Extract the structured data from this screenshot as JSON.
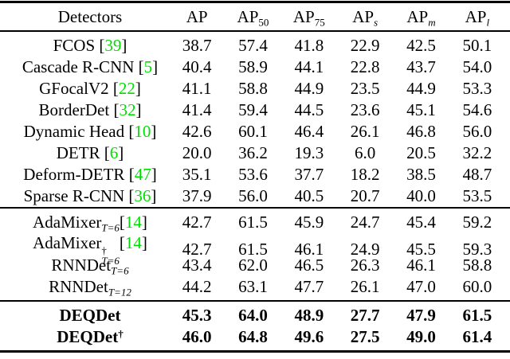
{
  "colors": {
    "citation": "#00dd00",
    "text": "#000000",
    "background": "#ffffff"
  },
  "table": {
    "header": [
      {
        "key": "detectors",
        "label": "Detectors",
        "sub": ""
      },
      {
        "key": "ap",
        "label": "AP",
        "sub": ""
      },
      {
        "key": "ap50",
        "label": "AP",
        "sub": "50"
      },
      {
        "key": "ap75",
        "label": "AP",
        "sub": "75"
      },
      {
        "key": "aps",
        "label": "AP",
        "sub": "s"
      },
      {
        "key": "apm",
        "label": "AP",
        "sub": "m"
      },
      {
        "key": "apl",
        "label": "AP",
        "sub": "l"
      }
    ],
    "sections": [
      {
        "bold": false,
        "rows": [
          {
            "name": "FCOS",
            "cite": "39",
            "values": [
              "38.7",
              "57.4",
              "41.8",
              "22.9",
              "42.5",
              "50.1"
            ]
          },
          {
            "name": "Cascade R-CNN",
            "cite": "5",
            "values": [
              "40.4",
              "58.9",
              "44.1",
              "22.8",
              "43.7",
              "54.0"
            ]
          },
          {
            "name": "GFocalV2",
            "cite": "22",
            "values": [
              "41.1",
              "58.8",
              "44.9",
              "23.5",
              "44.9",
              "53.3"
            ]
          },
          {
            "name": "BorderDet",
            "cite": "32",
            "values": [
              "41.4",
              "59.4",
              "44.5",
              "23.6",
              "45.1",
              "54.6"
            ]
          },
          {
            "name": "Dynamic Head",
            "cite": "10",
            "values": [
              "42.6",
              "60.1",
              "46.4",
              "26.1",
              "46.8",
              "56.0"
            ]
          },
          {
            "name": "DETR",
            "cite": "6",
            "values": [
              "20.0",
              "36.2",
              "19.3",
              "6.0",
              "20.5",
              "32.2"
            ]
          },
          {
            "name": "Deform-DETR",
            "cite": "47",
            "values": [
              "35.1",
              "53.6",
              "37.7",
              "18.2",
              "38.5",
              "48.7"
            ]
          },
          {
            "name": "Sparse R-CNN",
            "cite": "36",
            "values": [
              "37.9",
              "56.0",
              "40.5",
              "20.7",
              "40.0",
              "53.5"
            ]
          }
        ]
      },
      {
        "bold": false,
        "rows": [
          {
            "name": "AdaMixer",
            "sub": "T=6",
            "cite": "14",
            "values": [
              "42.7",
              "61.5",
              "45.9",
              "24.7",
              "45.4",
              "59.2"
            ]
          },
          {
            "name": "AdaMixer",
            "sub": "T=6",
            "dagger": true,
            "cite": "14",
            "values": [
              "42.7",
              "61.5",
              "46.1",
              "24.9",
              "45.5",
              "59.3"
            ]
          },
          {
            "name": "RNNDet",
            "sub": "T=6",
            "values": [
              "43.4",
              "62.0",
              "46.5",
              "26.3",
              "46.1",
              "58.8"
            ]
          },
          {
            "name": "RNNDet",
            "sub": "T=12",
            "values": [
              "44.2",
              "63.1",
              "47.7",
              "26.1",
              "47.0",
              "60.0"
            ]
          }
        ]
      },
      {
        "bold": true,
        "rows": [
          {
            "name": "DEQDet",
            "values": [
              "45.3",
              "64.0",
              "48.9",
              "27.7",
              "47.9",
              "61.5"
            ]
          },
          {
            "name": "DEQDet",
            "dagger": true,
            "values": [
              "46.0",
              "64.8",
              "49.6",
              "27.5",
              "49.0",
              "61.4"
            ]
          }
        ]
      }
    ]
  },
  "dagger_symbol": "†"
}
